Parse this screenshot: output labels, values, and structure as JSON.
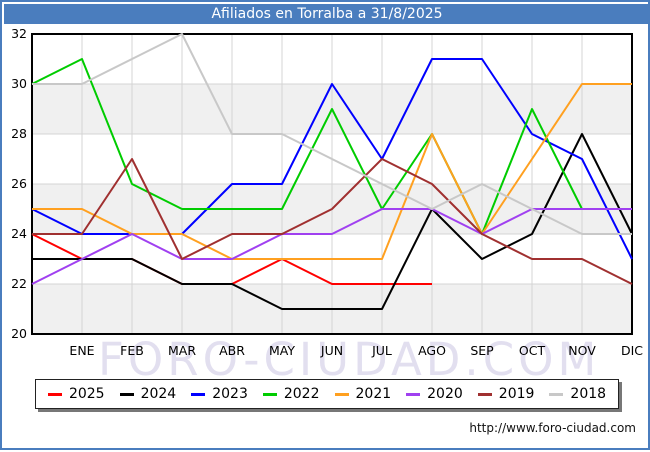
{
  "title": "Afiliados en Torralba a 31/8/2025",
  "watermark": "FORO-CIUDAD.COM",
  "url": "http://www.foro-ciudad.com",
  "colors": {
    "header_bg": "#4a7dbe",
    "header_text": "#ffffff",
    "frame": "#4a7dbe",
    "band": "#f0f0f0",
    "grid": "#d4d4d4",
    "plot_border": "#000000",
    "axis_text": "#000000"
  },
  "chart_data": {
    "type": "line",
    "title": "Afiliados en Torralba a 31/8/2025",
    "categories": [
      "ENE",
      "FEB",
      "MAR",
      "ABR",
      "MAY",
      "JUN",
      "JUL",
      "AGO",
      "SEP",
      "OCT",
      "NOV",
      "DIC"
    ],
    "ylim": [
      20,
      32
    ],
    "yticks": [
      20,
      22,
      24,
      26,
      28,
      30,
      32
    ],
    "grid": true,
    "legend_position": "bottom",
    "note": "Each series has one extra leading point drawn on the left axis before ENE; 2025 data ends at AGO (31/8/2025).",
    "series": [
      {
        "name": "2025",
        "color": "#ff0000",
        "values": [
          24,
          23,
          23,
          22,
          22,
          23,
          22,
          22,
          22
        ]
      },
      {
        "name": "2024",
        "color": "#000000",
        "values": [
          23,
          23,
          23,
          22,
          22,
          21,
          21,
          21,
          25,
          23,
          24,
          28,
          24
        ]
      },
      {
        "name": "2023",
        "color": "#0000ff",
        "values": [
          25,
          24,
          24,
          24,
          26,
          26,
          30,
          27,
          31,
          31,
          28,
          27,
          23
        ]
      },
      {
        "name": "2022",
        "color": "#00cc00",
        "values": [
          30,
          31,
          26,
          25,
          25,
          25,
          29,
          25,
          28,
          24,
          29,
          25,
          25
        ]
      },
      {
        "name": "2021",
        "color": "#ffa020",
        "values": [
          25,
          25,
          24,
          24,
          23,
          23,
          23,
          23,
          28,
          24,
          27,
          30,
          30
        ]
      },
      {
        "name": "2020",
        "color": "#a040f0",
        "values": [
          22,
          23,
          24,
          23,
          23,
          24,
          24,
          25,
          25,
          24,
          25,
          25,
          25
        ]
      },
      {
        "name": "2019",
        "color": "#a03030",
        "values": [
          24,
          24,
          27,
          23,
          24,
          24,
          25,
          27,
          26,
          24,
          23,
          23,
          22
        ]
      },
      {
        "name": "2018",
        "color": "#c8c8c8",
        "values": [
          30,
          30,
          31,
          32,
          28,
          28,
          27,
          26,
          25,
          26,
          25,
          24,
          24
        ]
      }
    ]
  }
}
